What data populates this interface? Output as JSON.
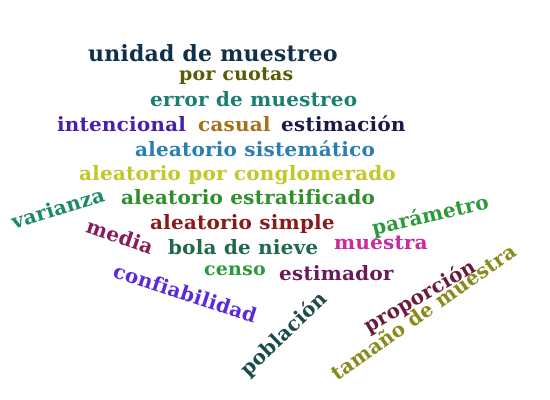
{
  "words": {
    "unidad": {
      "text": "unidad de muestreo",
      "color": "#0f2f4a"
    },
    "cuotas": {
      "text": "por cuotas",
      "color": "#5a5a0a"
    },
    "error": {
      "text": "error de muestreo",
      "color": "#1a7f72"
    },
    "intencional": {
      "text": "intencional",
      "color": "#4a1fa8"
    },
    "casual": {
      "text": "casual",
      "color": "#a8701a"
    },
    "estimacion": {
      "text": "estimación",
      "color": "#1a1a4a"
    },
    "sistematico": {
      "text": "aleatorio sistemático",
      "color": "#2a7fb0"
    },
    "conglomerado": {
      "text": "aleatorio por conglomerado",
      "color": "#c0c82a"
    },
    "estratificado": {
      "text": "aleatorio estratificado",
      "color": "#2f8f2a"
    },
    "simple": {
      "text": "aleatorio simple",
      "color": "#8a1a1a"
    },
    "bola": {
      "text": "bola de nieve",
      "color": "#1f6a4a"
    },
    "muestra": {
      "text": "muestra",
      "color": "#c82aa0"
    },
    "censo": {
      "text": "censo",
      "color": "#2a9a3a"
    },
    "estimador": {
      "text": "estimador",
      "color": "#6a1a5a"
    },
    "varianza": {
      "text": "varianza",
      "color": "#1a8a6a"
    },
    "media": {
      "text": "media",
      "color": "#8a1a5a"
    },
    "parametro": {
      "text": "parámetro",
      "color": "#2a9a3a"
    },
    "confiabilidad": {
      "text": "confiabilidad",
      "color": "#5a2ad8"
    },
    "poblacion": {
      "text": "población",
      "color": "#1a4a4a"
    },
    "proporcion": {
      "text": "proporción",
      "color": "#6a1a3a"
    },
    "tamano": {
      "text": "tamaño de muestra",
      "color": "#8a8a1a"
    }
  }
}
